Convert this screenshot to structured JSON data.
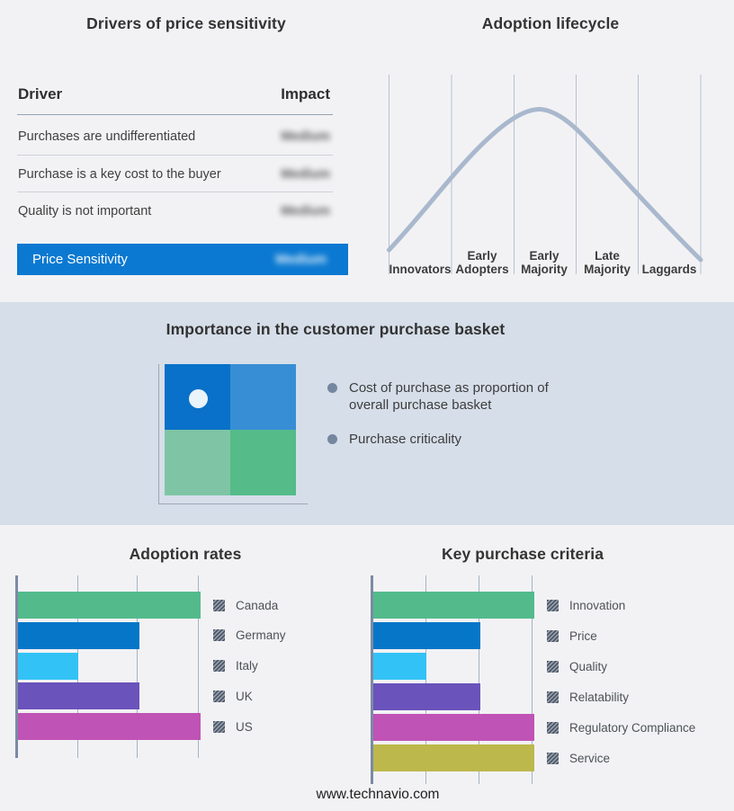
{
  "panels": {
    "drivers": {
      "title": "Drivers of price sensitivity",
      "columns": {
        "driver": "Driver",
        "impact": "Impact"
      },
      "rows": [
        {
          "driver": "Purchases are undifferentiated",
          "impact": "Medium",
          "impact_obscured": true
        },
        {
          "driver": "Purchase is a key cost to the buyer",
          "impact": "Medium",
          "impact_obscured": true
        },
        {
          "driver": "Quality is not important",
          "impact": "Medium",
          "impact_obscured": true
        }
      ],
      "highlight": {
        "driver": "Price Sensitivity",
        "impact": "Medium",
        "impact_obscured": true,
        "background": "#0b79d1"
      }
    },
    "lifecycle": {
      "title": "Adoption lifecycle",
      "stages": [
        "Innovators",
        "Early Adopters",
        "Early Majority",
        "Late Majority",
        "Laggards"
      ],
      "curve_color": "#a9b8cd"
    },
    "basket": {
      "title": "Importance in the customer purchase basket",
      "background": "#d6dee9",
      "bullets": [
        "Cost of purchase as proportion of overall purchase basket",
        "Purchase criticality"
      ],
      "quadrant_colors": {
        "top_left": "#0971c9",
        "top_right": "#388ed5",
        "bottom_left": "#7fc5a5",
        "bottom_right": "#54bb89"
      },
      "marker": "white-dot-in-top-left-quadrant"
    }
  },
  "footer": {
    "url": "www.technavio.com"
  },
  "chart_data": [
    {
      "id": "adoption-lifecycle",
      "type": "line",
      "title": "Adoption lifecycle",
      "x_stages": [
        "Innovators",
        "Early Adopters",
        "Early Majority",
        "Late Majority",
        "Laggards"
      ],
      "curve_points_stage_units": [
        [
          0,
          0.08
        ],
        [
          0.5,
          0.3
        ],
        [
          1,
          0.52
        ],
        [
          1.5,
          0.78
        ],
        [
          2,
          0.95
        ],
        [
          2.4,
          1.0
        ],
        [
          3,
          0.86
        ],
        [
          3.5,
          0.66
        ],
        [
          4,
          0.44
        ],
        [
          4.5,
          0.23
        ],
        [
          5,
          0.02
        ]
      ],
      "ylabel": "",
      "xlabel": "",
      "grid": "vertical-stage-dividers",
      "legend": "none",
      "line_color": "#a9b8cd"
    },
    {
      "id": "adoption-rates",
      "type": "bar",
      "orientation": "horizontal",
      "title": "Adoption rates",
      "categories": [
        "Canada",
        "Germany",
        "Italy",
        "UK",
        "US"
      ],
      "values": [
        3,
        2,
        1,
        2,
        3
      ],
      "value_note": "axis unlabeled; values read from gridline units",
      "xlim": [
        0,
        3
      ],
      "colors": [
        "#53bb8b",
        "#0677c8",
        "#33c2f6",
        "#6a53bb",
        "#c053b6"
      ],
      "legend_position": "right",
      "grid": "vertical"
    },
    {
      "id": "key-purchase-criteria",
      "type": "bar",
      "orientation": "horizontal",
      "title": "Key purchase criteria",
      "categories": [
        "Innovation",
        "Price",
        "Quality",
        "Relatability",
        "Regulatory Compliance",
        "Service"
      ],
      "values": [
        3,
        2,
        1,
        2,
        3,
        3
      ],
      "value_note": "axis unlabeled; values read from gridline units",
      "xlim": [
        0,
        3
      ],
      "colors": [
        "#53bb8b",
        "#0677c8",
        "#33c2f6",
        "#6a53bb",
        "#c053b6",
        "#bdb84b"
      ],
      "legend_position": "right",
      "grid": "vertical"
    }
  ]
}
